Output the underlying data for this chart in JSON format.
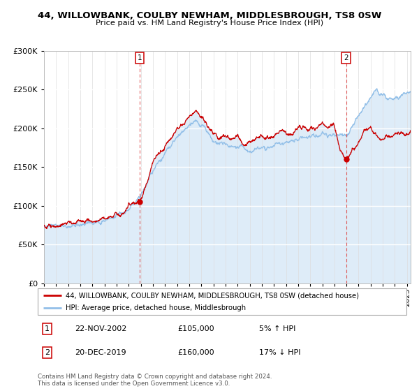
{
  "title": "44, WILLOWBANK, COULBY NEWHAM, MIDDLESBROUGH, TS8 0SW",
  "subtitle": "Price paid vs. HM Land Registry's House Price Index (HPI)",
  "legend_line1": "44, WILLOWBANK, COULBY NEWHAM, MIDDLESBROUGH, TS8 0SW (detached house)",
  "legend_line2": "HPI: Average price, detached house, Middlesbrough",
  "annotation1_label": "1",
  "annotation1_date": "22-NOV-2002",
  "annotation1_price": "£105,000",
  "annotation1_hpi": "5% ↑ HPI",
  "annotation2_label": "2",
  "annotation2_date": "20-DEC-2019",
  "annotation2_price": "£160,000",
  "annotation2_hpi": "17% ↓ HPI",
  "purchase1_x": 2002.9,
  "purchase1_y": 105000,
  "purchase2_x": 2019.97,
  "purchase2_y": 160000,
  "footer": "Contains HM Land Registry data © Crown copyright and database right 2024.\nThis data is licensed under the Open Government Licence v3.0.",
  "hpi_color": "#92bfe8",
  "price_color": "#cc0000",
  "fill_color": "#d6e8f7",
  "ylim": [
    0,
    300000
  ],
  "xlim_start": 1995.0,
  "xlim_end": 2025.3,
  "hpi_nodes_x": [
    1995.0,
    1996.0,
    1997.0,
    1998.0,
    1999.0,
    2000.0,
    2001.0,
    2002.0,
    2003.0,
    2004.0,
    2005.0,
    2006.0,
    2007.0,
    2007.5,
    2008.0,
    2008.5,
    2009.0,
    2009.5,
    2010.0,
    2010.5,
    2011.0,
    2011.5,
    2012.0,
    2012.5,
    2013.0,
    2013.5,
    2014.0,
    2014.5,
    2015.0,
    2015.5,
    2016.0,
    2016.5,
    2017.0,
    2017.5,
    2018.0,
    2018.5,
    2019.0,
    2019.5,
    2020.0,
    2020.5,
    2021.0,
    2021.5,
    2022.0,
    2022.5,
    2023.0,
    2023.5,
    2024.0,
    2024.5,
    2025.0,
    2025.3
  ],
  "hpi_nodes_y": [
    74000,
    74500,
    75000,
    76000,
    78000,
    81000,
    87000,
    94000,
    115000,
    145000,
    168000,
    190000,
    205000,
    210000,
    205000,
    198000,
    185000,
    180000,
    178000,
    176000,
    178000,
    174000,
    172000,
    175000,
    173000,
    175000,
    178000,
    180000,
    182000,
    183000,
    185000,
    187000,
    190000,
    192000,
    193000,
    193000,
    191000,
    190000,
    192000,
    205000,
    215000,
    228000,
    240000,
    248000,
    242000,
    238000,
    240000,
    243000,
    248000,
    250000
  ],
  "price_nodes_x": [
    1995.0,
    1996.0,
    1997.0,
    1998.0,
    1999.0,
    2000.0,
    2001.0,
    2002.0,
    2002.9,
    2003.5,
    2004.0,
    2005.0,
    2006.0,
    2007.0,
    2007.5,
    2008.0,
    2008.5,
    2009.0,
    2009.5,
    2010.0,
    2010.5,
    2011.0,
    2011.5,
    2012.0,
    2012.5,
    2013.0,
    2013.5,
    2014.0,
    2014.5,
    2015.0,
    2015.5,
    2016.0,
    2016.5,
    2017.0,
    2017.5,
    2018.0,
    2018.5,
    2019.0,
    2019.5,
    2019.97,
    2020.3,
    2020.7,
    2021.0,
    2021.5,
    2022.0,
    2022.5,
    2023.0,
    2023.5,
    2024.0,
    2024.5,
    2025.0,
    2025.3
  ],
  "price_nodes_y": [
    75000,
    76000,
    77000,
    79000,
    82000,
    85000,
    90000,
    97000,
    105000,
    128000,
    158000,
    178000,
    198000,
    215000,
    222000,
    215000,
    205000,
    195000,
    185000,
    190000,
    183000,
    188000,
    178000,
    183000,
    185000,
    188000,
    183000,
    190000,
    195000,
    197000,
    193000,
    198000,
    200000,
    202000,
    200000,
    205000,
    200000,
    203000,
    170000,
    160000,
    165000,
    172000,
    183000,
    195000,
    200000,
    192000,
    185000,
    190000,
    195000,
    195000,
    192000,
    193000
  ]
}
